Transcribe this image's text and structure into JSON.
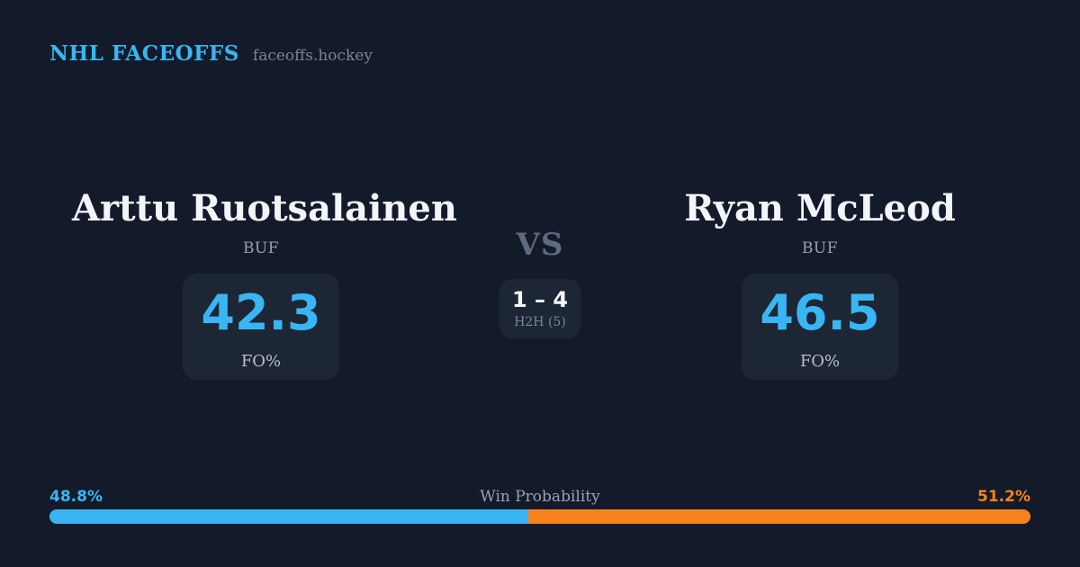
{
  "header": {
    "title": "NHL FACEOFFS",
    "site": "faceoffs.hockey"
  },
  "players": {
    "left": {
      "name": "Arttu Ruotsalainen",
      "team": "BUF",
      "stat_value": "42.3",
      "stat_label": "FO%"
    },
    "right": {
      "name": "Ryan McLeod",
      "team": "BUF",
      "stat_value": "46.5",
      "stat_label": "FO%"
    }
  },
  "matchup": {
    "vs_label": "VS",
    "h2h_score": "1 – 4",
    "h2h_label": "H2H (5)"
  },
  "win_probability": {
    "label": "Win Probability",
    "left_pct_label": "48.8%",
    "right_pct_label": "51.2%",
    "left_pct": 48.8,
    "right_pct": 51.2
  },
  "colors": {
    "background": "#131b2b",
    "card": "#1d2635",
    "accent_blue": "#38b6f4",
    "accent_orange": "#f8821c"
  }
}
